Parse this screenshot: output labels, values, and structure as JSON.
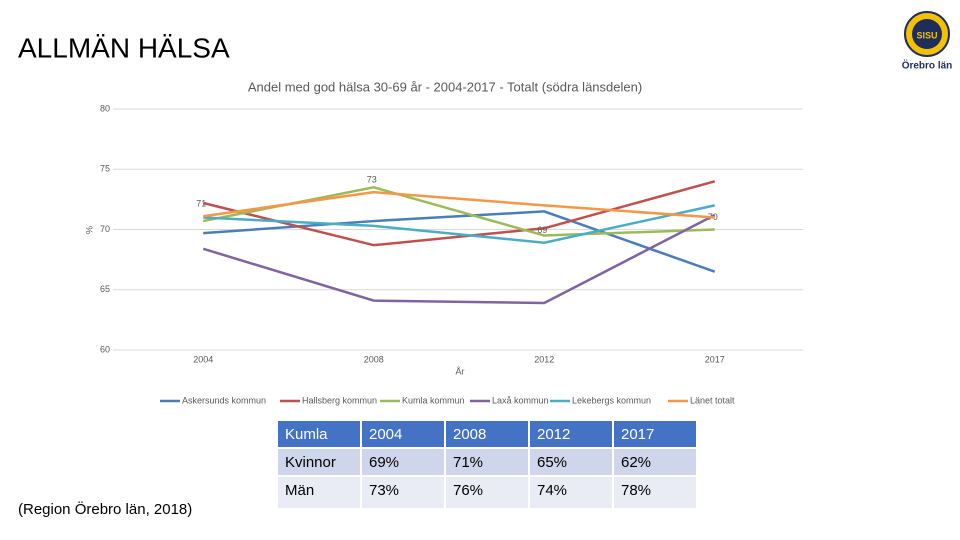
{
  "title": "ALLMÄN HÄLSA",
  "source": "(Region Örebro län, 2018)",
  "logo": {
    "text": "SISU",
    "caption": "Örebro län"
  },
  "chart_data": {
    "type": "line",
    "title": "Andel med god hälsa 30-69 år - 2004-2017 - Totalt (södra länsdelen)",
    "x_label": "År",
    "y_label": "%",
    "categories": [
      "2004",
      "2008",
      "2012",
      "2017"
    ],
    "ylim": [
      60,
      80
    ],
    "yticks": [
      60,
      65,
      70,
      75,
      80
    ],
    "grid": true,
    "legend": "bottom",
    "series": [
      {
        "name": "Askersunds kommun",
        "color": "#4a7ebb",
        "values": [
          69.7,
          70.7,
          71.5,
          66.5
        ]
      },
      {
        "name": "Hallsberg kommun",
        "color": "#c0504d",
        "values": [
          72.2,
          68.7,
          70.1,
          74.0
        ]
      },
      {
        "name": "Kumla kommun",
        "color": "#9bbb59",
        "values": [
          70.7,
          73.5,
          69.5,
          70.0
        ],
        "value_labels": [
          null,
          null,
          null,
          "70"
        ]
      },
      {
        "name": "Laxå kommun",
        "color": "#8064a2",
        "values": [
          68.4,
          64.1,
          63.9,
          71.2
        ]
      },
      {
        "name": "Lekebergs kommun",
        "color": "#4bacc6",
        "values": [
          71.0,
          70.3,
          68.9,
          72.0
        ],
        "value_labels": [
          null,
          null,
          "69",
          null
        ]
      },
      {
        "name": "Länet totalt",
        "color": "#f79646",
        "values": [
          71.1,
          73.1,
          72.0,
          71.0
        ],
        "value_labels": [
          "71",
          "73",
          null,
          null
        ]
      }
    ]
  },
  "table": {
    "header": [
      "Kumla",
      "2004",
      "2008",
      "2012",
      "2017"
    ],
    "rows": [
      [
        "Kvinnor",
        "69%",
        "71%",
        "65%",
        "62%"
      ],
      [
        "Män",
        "73%",
        "76%",
        "74%",
        "78%"
      ]
    ]
  }
}
